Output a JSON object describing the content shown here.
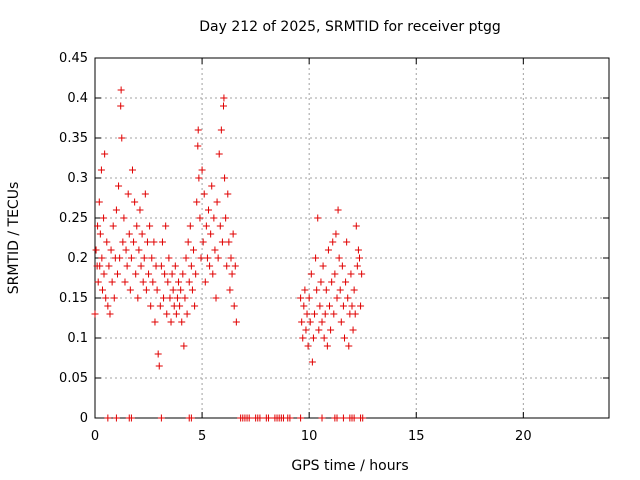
{
  "chart_data": {
    "type": "scatter",
    "title": "Day 212 of 2025, SRMTID for receiver ptgg",
    "xlabel": "GPS time / hours",
    "ylabel": "SRMTID / TECUs",
    "xlim": [
      0,
      24
    ],
    "ylim": [
      0,
      0.45
    ],
    "xticks": [
      0,
      5,
      10,
      15,
      20
    ],
    "xtick_labels": [
      "0",
      "5",
      "10",
      "15",
      "20"
    ],
    "yticks": [
      0,
      0.05,
      0.1,
      0.15,
      0.2,
      0.25,
      0.3,
      0.35,
      0.4,
      0.45
    ],
    "ytick_labels": [
      "0",
      "0.05",
      "0.1",
      "0.15",
      "0.2",
      "0.25",
      "0.3",
      "0.35",
      "0.4",
      "0.45"
    ],
    "grid": true,
    "marker": "+",
    "color": "#e00000",
    "series": [
      {
        "name": "SRMTID",
        "points": [
          [
            0.0,
            0.13
          ],
          [
            0.05,
            0.21
          ],
          [
            0.1,
            0.19
          ],
          [
            0.12,
            0.24
          ],
          [
            0.15,
            0.17
          ],
          [
            0.2,
            0.27
          ],
          [
            0.22,
            0.19
          ],
          [
            0.25,
            0.23
          ],
          [
            0.3,
            0.31
          ],
          [
            0.32,
            0.2
          ],
          [
            0.35,
            0.16
          ],
          [
            0.4,
            0.25
          ],
          [
            0.42,
            0.18
          ],
          [
            0.45,
            0.33
          ],
          [
            0.5,
            0.15
          ],
          [
            0.55,
            0.22
          ],
          [
            0.6,
            0.14
          ],
          [
            0.65,
            0.19
          ],
          [
            0.7,
            0.13
          ],
          [
            0.75,
            0.21
          ],
          [
            0.8,
            0.17
          ],
          [
            0.85,
            0.24
          ],
          [
            0.9,
            0.15
          ],
          [
            0.95,
            0.2
          ],
          [
            1.0,
            0.26
          ],
          [
            1.05,
            0.18
          ],
          [
            1.1,
            0.29
          ],
          [
            1.15,
            0.2
          ],
          [
            1.2,
            0.39
          ],
          [
            1.22,
            0.41
          ],
          [
            1.25,
            0.35
          ],
          [
            1.3,
            0.22
          ],
          [
            1.35,
            0.25
          ],
          [
            1.4,
            0.17
          ],
          [
            1.45,
            0.21
          ],
          [
            1.5,
            0.19
          ],
          [
            1.55,
            0.28
          ],
          [
            1.6,
            0.23
          ],
          [
            1.65,
            0.16
          ],
          [
            1.7,
            0.2
          ],
          [
            1.75,
            0.31
          ],
          [
            1.8,
            0.22
          ],
          [
            1.85,
            0.27
          ],
          [
            1.9,
            0.18
          ],
          [
            1.95,
            0.24
          ],
          [
            2.0,
            0.15
          ],
          [
            2.05,
            0.21
          ],
          [
            2.1,
            0.26
          ],
          [
            2.15,
            0.19
          ],
          [
            2.2,
            0.23
          ],
          [
            2.25,
            0.17
          ],
          [
            2.3,
            0.2
          ],
          [
            2.35,
            0.28
          ],
          [
            2.4,
            0.16
          ],
          [
            2.45,
            0.22
          ],
          [
            2.5,
            0.18
          ],
          [
            2.55,
            0.24
          ],
          [
            2.6,
            0.14
          ],
          [
            2.65,
            0.2
          ],
          [
            2.7,
            0.17
          ],
          [
            2.75,
            0.22
          ],
          [
            2.8,
            0.12
          ],
          [
            2.85,
            0.19
          ],
          [
            2.9,
            0.16
          ],
          [
            2.95,
            0.08
          ],
          [
            3.0,
            0.065
          ],
          [
            3.05,
            0.14
          ],
          [
            3.1,
            0.19
          ],
          [
            3.15,
            0.22
          ],
          [
            3.2,
            0.15
          ],
          [
            3.25,
            0.18
          ],
          [
            3.3,
            0.24
          ],
          [
            3.35,
            0.13
          ],
          [
            3.4,
            0.17
          ],
          [
            3.45,
            0.2
          ],
          [
            3.5,
            0.15
          ],
          [
            3.55,
            0.12
          ],
          [
            3.6,
            0.18
          ],
          [
            3.65,
            0.16
          ],
          [
            3.7,
            0.14
          ],
          [
            3.75,
            0.19
          ],
          [
            3.8,
            0.13
          ],
          [
            3.85,
            0.15
          ],
          [
            3.9,
            0.17
          ],
          [
            3.95,
            0.14
          ],
          [
            4.0,
            0.16
          ],
          [
            4.05,
            0.12
          ],
          [
            4.1,
            0.18
          ],
          [
            4.15,
            0.09
          ],
          [
            4.2,
            0.15
          ],
          [
            4.25,
            0.2
          ],
          [
            4.3,
            0.13
          ],
          [
            4.35,
            0.22
          ],
          [
            4.4,
            0.17
          ],
          [
            4.45,
            0.24
          ],
          [
            4.5,
            0.19
          ],
          [
            4.55,
            0.16
          ],
          [
            4.6,
            0.21
          ],
          [
            4.65,
            0.14
          ],
          [
            4.7,
            0.18
          ],
          [
            4.75,
            0.27
          ],
          [
            4.8,
            0.34
          ],
          [
            4.82,
            0.36
          ],
          [
            4.85,
            0.3
          ],
          [
            4.9,
            0.25
          ],
          [
            4.95,
            0.2
          ],
          [
            5.0,
            0.31
          ],
          [
            5.05,
            0.22
          ],
          [
            5.1,
            0.28
          ],
          [
            5.15,
            0.17
          ],
          [
            5.2,
            0.24
          ],
          [
            5.25,
            0.2
          ],
          [
            5.3,
            0.26
          ],
          [
            5.35,
            0.19
          ],
          [
            5.4,
            0.23
          ],
          [
            5.45,
            0.29
          ],
          [
            5.5,
            0.18
          ],
          [
            5.55,
            0.25
          ],
          [
            5.6,
            0.21
          ],
          [
            5.65,
            0.15
          ],
          [
            5.7,
            0.27
          ],
          [
            5.75,
            0.2
          ],
          [
            5.8,
            0.33
          ],
          [
            5.85,
            0.24
          ],
          [
            5.9,
            0.36
          ],
          [
            5.95,
            0.22
          ],
          [
            6.0,
            0.39
          ],
          [
            6.02,
            0.4
          ],
          [
            6.05,
            0.3
          ],
          [
            6.1,
            0.25
          ],
          [
            6.15,
            0.19
          ],
          [
            6.2,
            0.28
          ],
          [
            6.25,
            0.22
          ],
          [
            6.3,
            0.16
          ],
          [
            6.35,
            0.2
          ],
          [
            6.4,
            0.18
          ],
          [
            6.45,
            0.23
          ],
          [
            6.5,
            0.14
          ],
          [
            6.55,
            0.19
          ],
          [
            6.6,
            0.12
          ],
          [
            9.6,
            0.15
          ],
          [
            9.65,
            0.12
          ],
          [
            9.7,
            0.1
          ],
          [
            9.75,
            0.14
          ],
          [
            9.8,
            0.16
          ],
          [
            9.85,
            0.11
          ],
          [
            9.9,
            0.13
          ],
          [
            9.95,
            0.09
          ],
          [
            10.0,
            0.15
          ],
          [
            10.05,
            0.12
          ],
          [
            10.1,
            0.18
          ],
          [
            10.15,
            0.07
          ],
          [
            10.2,
            0.1
          ],
          [
            10.25,
            0.13
          ],
          [
            10.3,
            0.2
          ],
          [
            10.35,
            0.16
          ],
          [
            10.4,
            0.25
          ],
          [
            10.45,
            0.11
          ],
          [
            10.5,
            0.14
          ],
          [
            10.55,
            0.17
          ],
          [
            10.6,
            0.12
          ],
          [
            10.65,
            0.19
          ],
          [
            10.7,
            0.1
          ],
          [
            10.75,
            0.13
          ],
          [
            10.8,
            0.16
          ],
          [
            10.85,
            0.09
          ],
          [
            10.9,
            0.21
          ],
          [
            10.95,
            0.14
          ],
          [
            11.0,
            0.11
          ],
          [
            11.05,
            0.17
          ],
          [
            11.1,
            0.22
          ],
          [
            11.15,
            0.13
          ],
          [
            11.2,
            0.18
          ],
          [
            11.25,
            0.23
          ],
          [
            11.3,
            0.15
          ],
          [
            11.35,
            0.26
          ],
          [
            11.4,
            0.2
          ],
          [
            11.45,
            0.16
          ],
          [
            11.5,
            0.12
          ],
          [
            11.55,
            0.19
          ],
          [
            11.6,
            0.14
          ],
          [
            11.65,
            0.1
          ],
          [
            11.7,
            0.17
          ],
          [
            11.75,
            0.22
          ],
          [
            11.8,
            0.15
          ],
          [
            11.85,
            0.09
          ],
          [
            11.9,
            0.13
          ],
          [
            11.95,
            0.18
          ],
          [
            12.0,
            0.14
          ],
          [
            12.05,
            0.11
          ],
          [
            12.1,
            0.16
          ],
          [
            12.15,
            0.13
          ],
          [
            12.2,
            0.24
          ],
          [
            12.25,
            0.19
          ],
          [
            12.3,
            0.21
          ],
          [
            12.35,
            0.2
          ],
          [
            12.4,
            0.14
          ],
          [
            12.45,
            0.18
          ],
          [
            0.6,
            0.0
          ],
          [
            1.0,
            0.0
          ],
          [
            1.6,
            0.0
          ],
          [
            1.7,
            0.0
          ],
          [
            3.1,
            0.0
          ],
          [
            4.4,
            0.0
          ],
          [
            4.5,
            0.0
          ],
          [
            6.8,
            0.0
          ],
          [
            6.9,
            0.0
          ],
          [
            7.0,
            0.0
          ],
          [
            7.1,
            0.0
          ],
          [
            7.2,
            0.0
          ],
          [
            7.5,
            0.0
          ],
          [
            7.6,
            0.0
          ],
          [
            7.7,
            0.0
          ],
          [
            8.0,
            0.0
          ],
          [
            8.1,
            0.0
          ],
          [
            8.4,
            0.0
          ],
          [
            8.5,
            0.0
          ],
          [
            8.6,
            0.0
          ],
          [
            8.7,
            0.0
          ],
          [
            8.8,
            0.0
          ],
          [
            9.0,
            0.0
          ],
          [
            9.1,
            0.0
          ],
          [
            9.6,
            0.0
          ],
          [
            10.6,
            0.0
          ],
          [
            11.2,
            0.0
          ],
          [
            11.3,
            0.0
          ],
          [
            11.6,
            0.0
          ],
          [
            11.9,
            0.0
          ],
          [
            12.0,
            0.0
          ],
          [
            12.1,
            0.0
          ],
          [
            12.4,
            0.0
          ],
          [
            12.5,
            0.0
          ]
        ]
      }
    ]
  }
}
